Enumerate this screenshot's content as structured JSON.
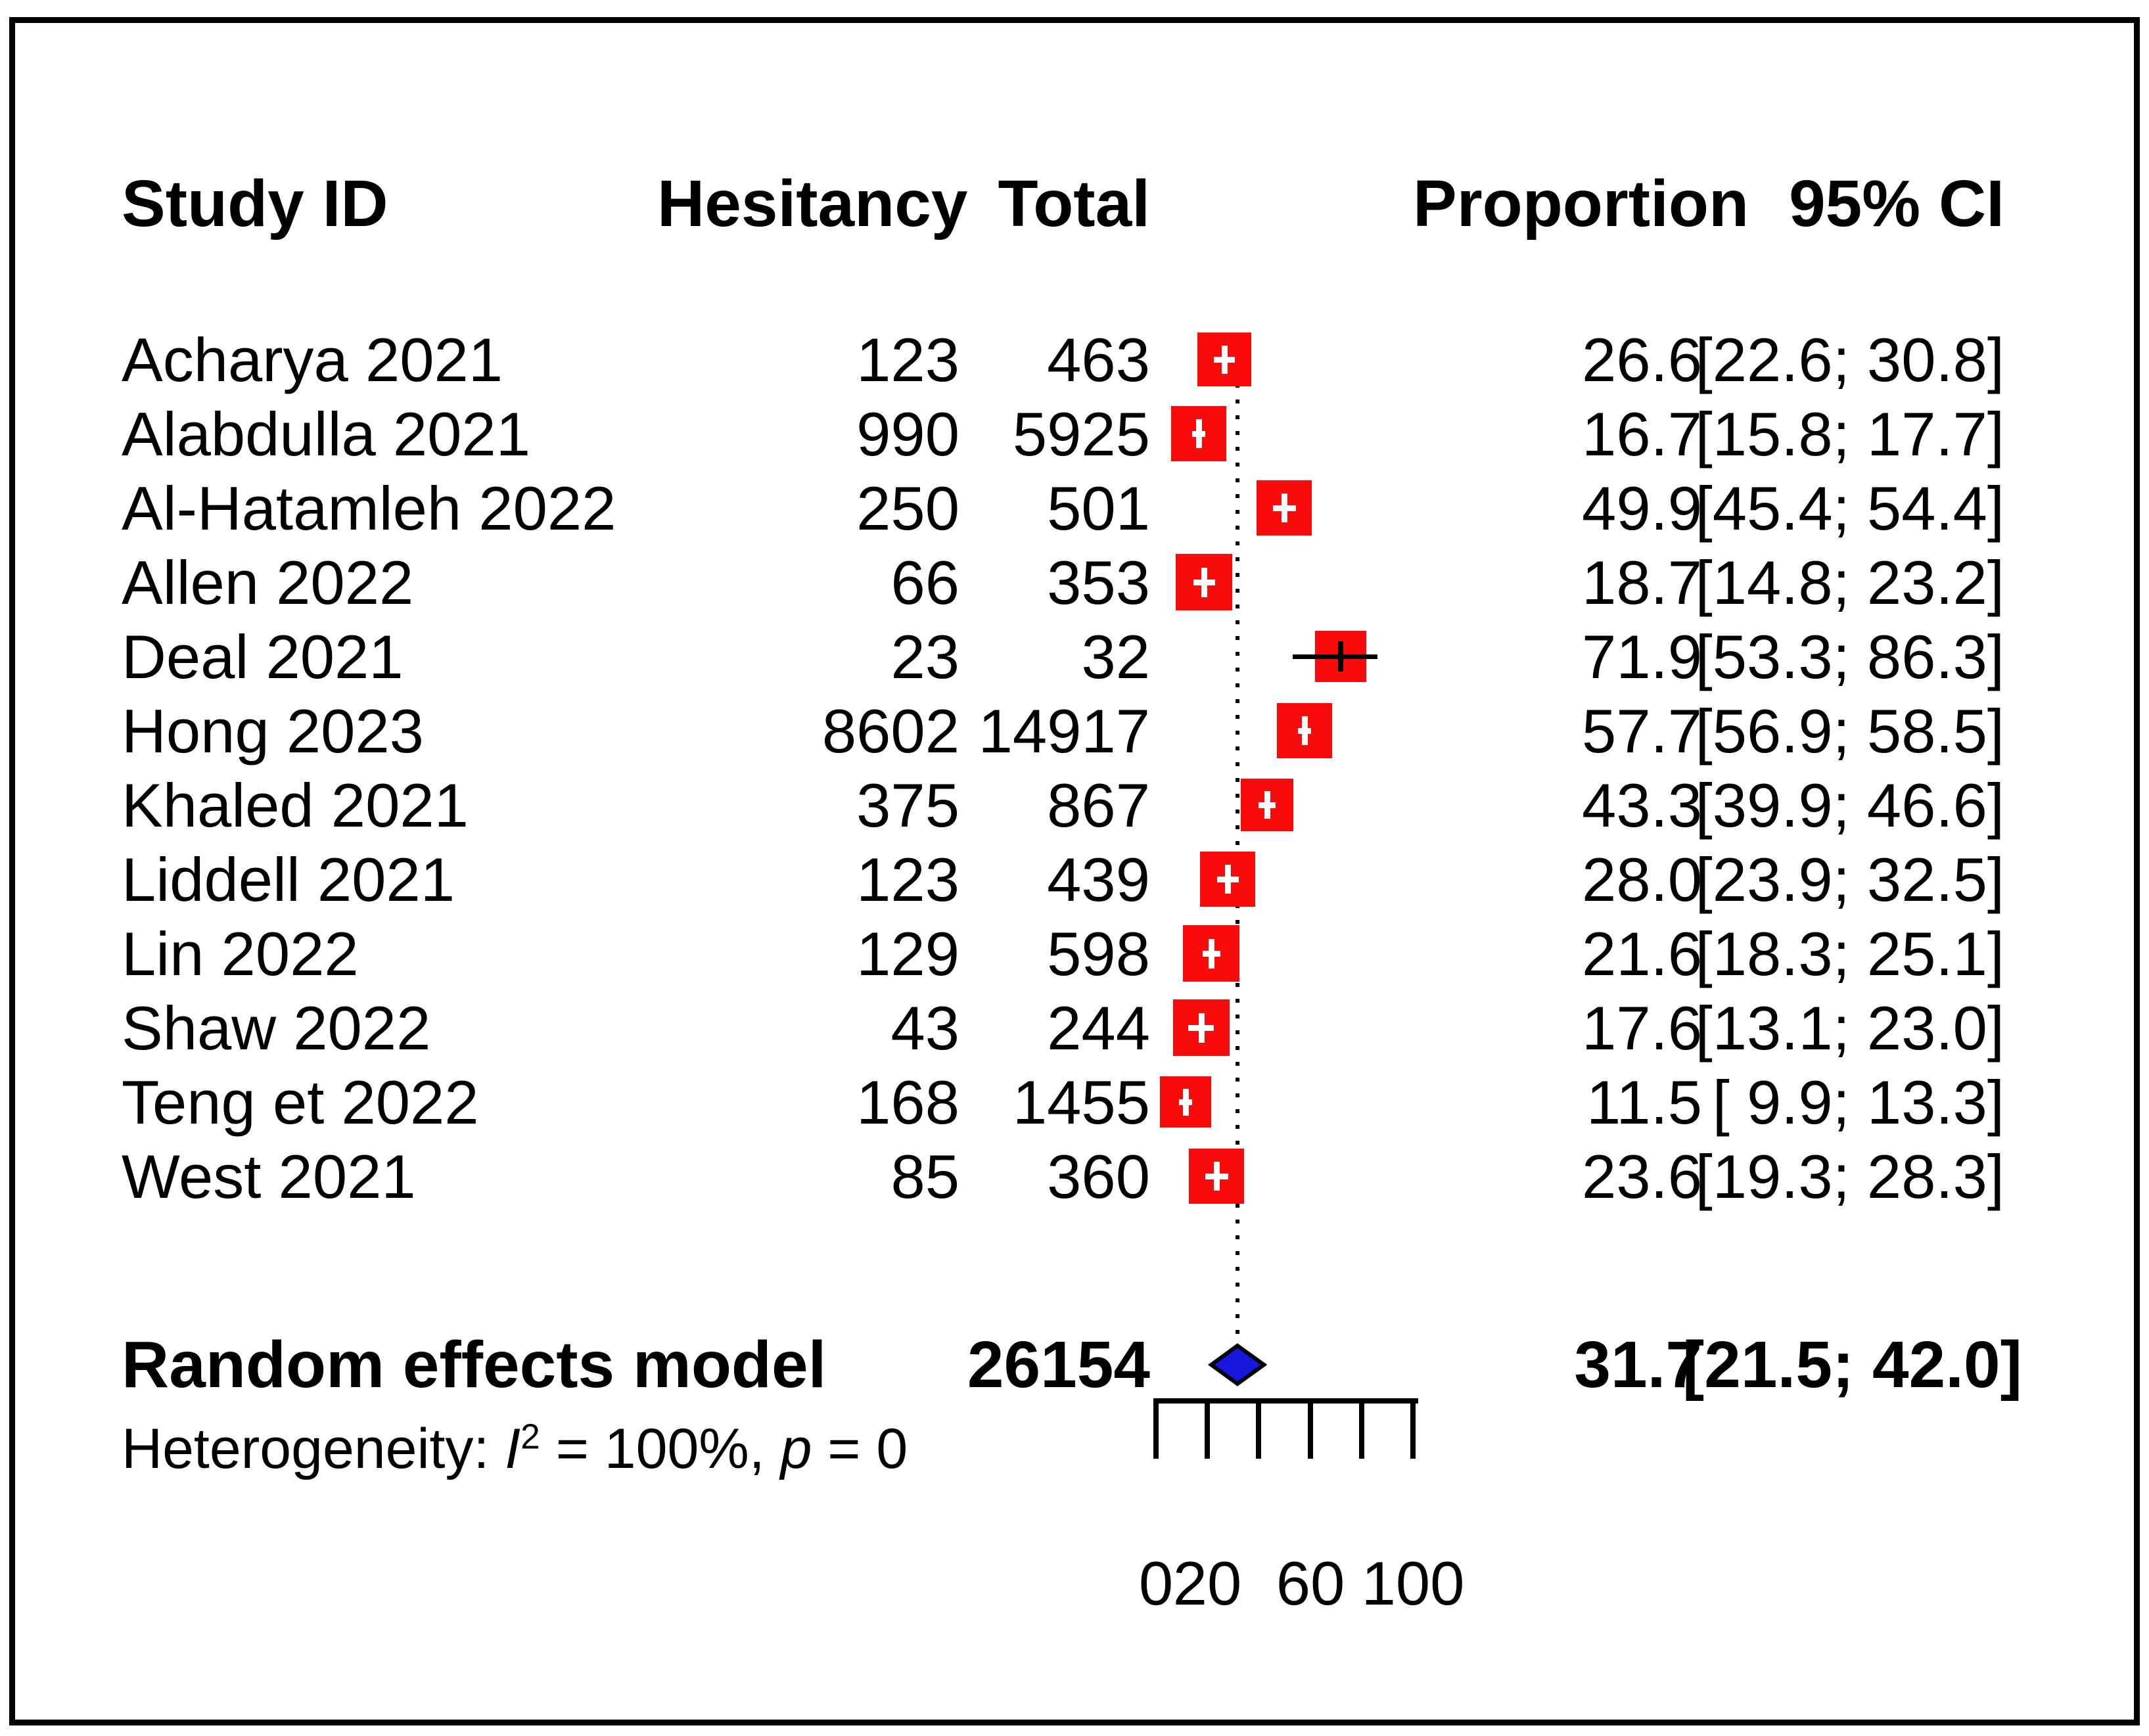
{
  "chart_data": {
    "type": "forest",
    "title": "",
    "xlabel": "",
    "xlim": [
      0,
      100
    ],
    "x_ticks": [
      0,
      20,
      40,
      60,
      80,
      100
    ],
    "x_tick_labels": [
      {
        "v": 0,
        "t": "0"
      },
      {
        "v": 20,
        "t": "20"
      },
      {
        "v": 60,
        "t": "60"
      },
      {
        "v": 100,
        "t": "100"
      }
    ],
    "columns": [
      "Study ID",
      "Hesitancy",
      "Total",
      "Proportion",
      "95% CI"
    ],
    "studies": [
      {
        "study": "Acharya 2021",
        "hesitancy": "123",
        "total": "463",
        "proportion": 26.6,
        "proportion_label": "26.6",
        "ci": [
          22.6,
          30.8
        ],
        "ci_label": "[22.6; 30.8]",
        "marker_px": 82,
        "ci_wider_than_marker": false
      },
      {
        "study": "Alabdulla 2021",
        "hesitancy": "990",
        "total": "5925",
        "proportion": 16.7,
        "proportion_label": "16.7",
        "ci": [
          15.8,
          17.7
        ],
        "ci_label": "[15.8; 17.7]",
        "marker_px": 84,
        "ci_wider_than_marker": false
      },
      {
        "study": "Al-Hatamleh 2022",
        "hesitancy": "250",
        "total": "501",
        "proportion": 49.9,
        "proportion_label": "49.9",
        "ci": [
          45.4,
          54.4
        ],
        "ci_label": "[45.4; 54.4]",
        "marker_px": 84,
        "ci_wider_than_marker": false
      },
      {
        "study": "Allen 2022",
        "hesitancy": "66",
        "total": "353",
        "proportion": 18.7,
        "proportion_label": "18.7",
        "ci": [
          14.8,
          23.2
        ],
        "ci_label": "[14.8; 23.2]",
        "marker_px": 86,
        "ci_wider_than_marker": false
      },
      {
        "study": "Deal 2021",
        "hesitancy": "23",
        "total": "32",
        "proportion": 71.9,
        "proportion_label": "71.9",
        "ci": [
          53.3,
          86.3
        ],
        "ci_label": "[53.3; 86.3]",
        "marker_px": 78,
        "ci_wider_than_marker": true
      },
      {
        "study": "Hong 2023",
        "hesitancy": "8602",
        "total": "14917",
        "proportion": 57.7,
        "proportion_label": "57.7",
        "ci": [
          56.9,
          58.5
        ],
        "ci_label": "[56.9; 58.5]",
        "marker_px": 84,
        "ci_wider_than_marker": false
      },
      {
        "study": "Khaled 2021",
        "hesitancy": "375",
        "total": "867",
        "proportion": 43.3,
        "proportion_label": "43.3",
        "ci": [
          39.9,
          46.6
        ],
        "ci_label": "[39.9; 46.6]",
        "marker_px": 80,
        "ci_wider_than_marker": false
      },
      {
        "study": "Liddell 2021",
        "hesitancy": "123",
        "total": "439",
        "proportion": 28.0,
        "proportion_label": "28.0",
        "ci": [
          23.9,
          32.5
        ],
        "ci_label": "[23.9; 32.5]",
        "marker_px": 84,
        "ci_wider_than_marker": false
      },
      {
        "study": "Lin 2022",
        "hesitancy": "129",
        "total": "598",
        "proportion": 21.6,
        "proportion_label": "21.6",
        "ci": [
          18.3,
          25.1
        ],
        "ci_label": "[18.3; 25.1]",
        "marker_px": 86,
        "ci_wider_than_marker": false
      },
      {
        "study": "Shaw 2022",
        "hesitancy": "43",
        "total": "244",
        "proportion": 17.6,
        "proportion_label": "17.6",
        "ci": [
          13.1,
          23.0
        ],
        "ci_label": "[13.1; 23.0]",
        "marker_px": 86,
        "ci_wider_than_marker": false
      },
      {
        "study": "Teng et 2022",
        "hesitancy": "168",
        "total": "1455",
        "proportion": 11.5,
        "proportion_label": "11.5",
        "ci": [
          9.9,
          13.3
        ],
        "ci_label": "[ 9.9; 13.3]",
        "marker_px": 78,
        "ci_wider_than_marker": false
      },
      {
        "study": "West 2021",
        "hesitancy": "85",
        "total": "360",
        "proportion": 23.6,
        "proportion_label": "23.6",
        "ci": [
          19.3,
          28.3
        ],
        "ci_label": "[19.3; 28.3]",
        "marker_px": 84,
        "ci_wider_than_marker": false
      }
    ],
    "summary": {
      "study": "Random effects model",
      "total_label": "26154",
      "proportion": 31.7,
      "proportion_label": "31.7",
      "ci": [
        21.5,
        42.0
      ],
      "ci_label": "[21.5; 42.0]"
    },
    "heterogeneity": {
      "full_text": "Heterogeneity: I2 = 100%, p = 0",
      "prefix": "Heterogeneity: ",
      "i": "I",
      "sup": "2",
      "mid": " = 100%, ",
      "p": "p",
      "end": " = 0"
    },
    "reference_line": 31.7,
    "legend": null,
    "grid": false,
    "marker_color": "#fa0a0a",
    "diamond_color": "#1616dd",
    "line_color": "#000000"
  }
}
